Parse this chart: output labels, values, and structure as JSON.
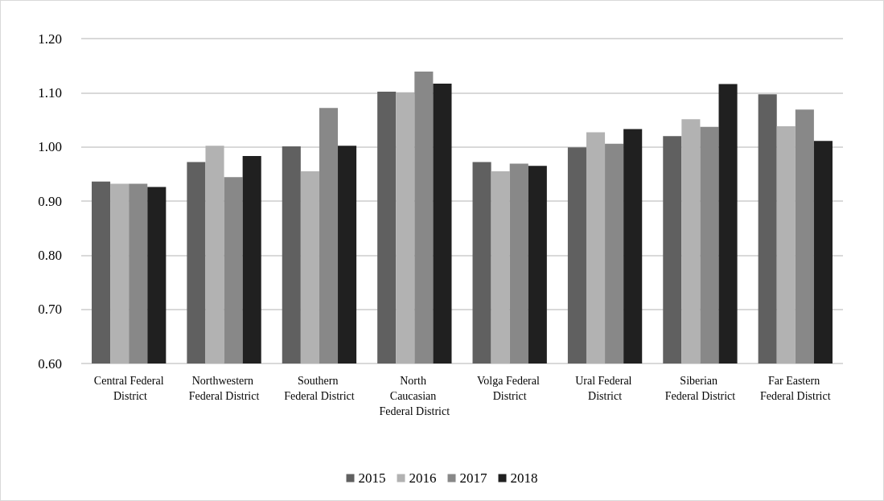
{
  "chart_data": {
    "type": "bar",
    "categories": [
      "Central Federal District",
      "Northwestern Federal District",
      "Southern Federal District",
      "North Caucasian Federal District",
      "Volga Federal District",
      "Ural Federal District",
      "Siberian Federal District",
      "Far Eastern Federal District"
    ],
    "series": [
      {
        "name": "2015",
        "color": "#606060",
        "values": [
          0.936,
          0.972,
          1.001,
          1.102,
          0.972,
          0.999,
          1.02,
          1.097
        ]
      },
      {
        "name": "2016",
        "color": "#b2b2b2",
        "values": [
          0.932,
          1.002,
          0.955,
          1.101,
          0.955,
          1.027,
          1.051,
          1.038
        ]
      },
      {
        "name": "2017",
        "color": "#888888",
        "values": [
          0.932,
          0.944,
          1.072,
          1.139,
          0.969,
          1.006,
          1.037,
          1.069
        ]
      },
      {
        "name": "2018",
        "color": "#202020",
        "values": [
          0.926,
          0.983,
          1.002,
          1.117,
          0.965,
          1.033,
          1.116,
          1.011
        ]
      }
    ],
    "ylim": [
      0.6,
      1.2
    ],
    "yticks": [
      {
        "value": 0.6,
        "label": "0.60"
      },
      {
        "value": 0.7,
        "label": "0.70"
      },
      {
        "value": 0.8,
        "label": "0.80"
      },
      {
        "value": 0.9,
        "label": "0.90"
      },
      {
        "value": 1.0,
        "label": "1.00"
      },
      {
        "value": 1.1,
        "label": "1.10"
      },
      {
        "value": 1.2,
        "label": "1.20"
      }
    ],
    "grid": "y",
    "legend": "bottom"
  }
}
